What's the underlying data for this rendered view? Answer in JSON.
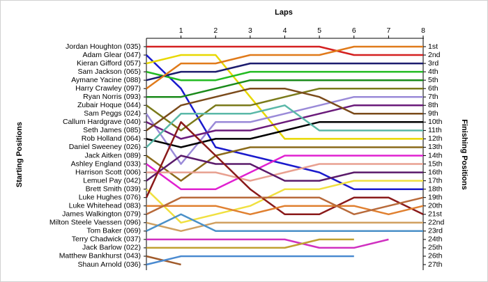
{
  "chart_data": {
    "type": "bump",
    "title": "Laps",
    "y_label": "Starting Positions",
    "y2_label": "Finishing Positions",
    "x": [
      0,
      1,
      2,
      3,
      4,
      5,
      6,
      7,
      8
    ],
    "xlim": [
      0,
      8
    ],
    "xticks": [
      1,
      2,
      3,
      4,
      5,
      6,
      7,
      8
    ],
    "ylim": [
      1,
      27
    ],
    "y_reversed": true,
    "y2ticks": [
      {
        "value": 1,
        "label": "1st"
      },
      {
        "value": 2,
        "label": "2nd"
      },
      {
        "value": 3,
        "label": "3rd"
      },
      {
        "value": 4,
        "label": "4th"
      },
      {
        "value": 5,
        "label": "5th"
      },
      {
        "value": 6,
        "label": "6th"
      },
      {
        "value": 7,
        "label": "7th"
      },
      {
        "value": 8,
        "label": "8th"
      },
      {
        "value": 9,
        "label": "9th"
      },
      {
        "value": 10,
        "label": "10th"
      },
      {
        "value": 11,
        "label": "11th"
      },
      {
        "value": 12,
        "label": "12th"
      },
      {
        "value": 13,
        "label": "13th"
      },
      {
        "value": 14,
        "label": "14th"
      },
      {
        "value": 15,
        "label": "15th"
      },
      {
        "value": 16,
        "label": "16th"
      },
      {
        "value": 17,
        "label": "17th"
      },
      {
        "value": 18,
        "label": "18th"
      },
      {
        "value": 19,
        "label": "19th"
      },
      {
        "value": 20,
        "label": "20th"
      },
      {
        "value": 21,
        "label": "21st"
      },
      {
        "value": 22,
        "label": "22nd"
      },
      {
        "value": 23,
        "label": "23rd"
      },
      {
        "value": 24,
        "label": "24th"
      },
      {
        "value": 25,
        "label": "25th"
      },
      {
        "value": 26,
        "label": "26th"
      },
      {
        "value": 27,
        "label": "27th"
      }
    ],
    "series": [
      {
        "name": "Jordan Houghton (035)",
        "color": "#d42020",
        "values": [
          1,
          1,
          1,
          1,
          1,
          1,
          2,
          2,
          2
        ]
      },
      {
        "name": "Adam Glear (047)",
        "color": "#1a1acc",
        "values": [
          2,
          6,
          13,
          14,
          15,
          16,
          18,
          18,
          18
        ]
      },
      {
        "name": "Kieran Gifford (057)",
        "color": "#e8d800",
        "values": [
          3,
          2,
          2,
          7,
          12,
          12,
          12,
          12,
          12
        ]
      },
      {
        "name": "Sam Jackson (065)",
        "color": "#22bb22",
        "values": [
          4,
          5,
          5,
          4,
          4,
          4,
          4,
          4,
          4
        ]
      },
      {
        "name": "Aymane Yacine (088)",
        "color": "#1c1c6e",
        "values": [
          5,
          4,
          4,
          3,
          3,
          3,
          3,
          3,
          3
        ]
      },
      {
        "name": "Harry Crawley (097)",
        "color": "#e07a1a",
        "values": [
          6,
          3,
          3,
          2,
          2,
          2,
          1,
          1,
          1
        ]
      },
      {
        "name": "Ryan Norris (093)",
        "color": "#1a8a1a",
        "values": [
          7,
          7,
          6,
          5,
          5,
          5,
          5,
          5,
          5
        ]
      },
      {
        "name": "Zubair Hoque (044)",
        "color": "#7a7a1a",
        "values": [
          8,
          11,
          8,
          8,
          7,
          6,
          6,
          6,
          6
        ]
      },
      {
        "name": "Sam Peggs (024)",
        "color": "#9a8ad8",
        "values": [
          9,
          15,
          10,
          10,
          9,
          8,
          7,
          7,
          7
        ]
      },
      {
        "name": "Callum Hardgrave (040)",
        "color": "#6a1a7a",
        "values": [
          10,
          12,
          11,
          11,
          10,
          9,
          8,
          8,
          8
        ]
      },
      {
        "name": "Seth James (085)",
        "color": "#7a4a1a",
        "values": [
          11,
          8,
          7,
          6,
          6,
          7,
          9,
          9,
          9
        ]
      },
      {
        "name": "Rob Holland (064)",
        "color": "#000000",
        "values": [
          12,
          13,
          12,
          12,
          11,
          10,
          10,
          10,
          10
        ]
      },
      {
        "name": "Daniel Sweeney (026)",
        "color": "#5ab8a8",
        "values": [
          13,
          9,
          9,
          9,
          8,
          11,
          11,
          11,
          11
        ]
      },
      {
        "name": "Jack Aitken (089)",
        "color": "#8a6a1a",
        "values": [
          14,
          17,
          14,
          13,
          13,
          13,
          13,
          13,
          13
        ]
      },
      {
        "name": "Ashley England (033)",
        "color": "#e020d0",
        "values": [
          15,
          18,
          18,
          16,
          14,
          14,
          14,
          14,
          14
        ]
      },
      {
        "name": "Harrison Scott (006)",
        "color": "#e8a090",
        "values": [
          16,
          16,
          16,
          17,
          16,
          15,
          15,
          15,
          15
        ]
      },
      {
        "name": "Lemuel Pay (042)",
        "color": "#5a1a6a",
        "values": [
          17,
          14,
          15,
          15,
          17,
          17,
          16,
          16,
          16
        ]
      },
      {
        "name": "Brett Smith (039)",
        "color": "#f0e040",
        "values": [
          18,
          22,
          21,
          20,
          18,
          18,
          17,
          17,
          17
        ]
      },
      {
        "name": "Luke Hughes (076)",
        "color": "#8a1a1a",
        "values": [
          19,
          10,
          14,
          18,
          21,
          21,
          19,
          19,
          21
        ]
      },
      {
        "name": "Luke Whitehead (083)",
        "color": "#e08030",
        "values": [
          20,
          20,
          20,
          21,
          20,
          20,
          20,
          21,
          20
        ]
      },
      {
        "name": "James Walkington (079)",
        "color": "#b86a3a",
        "values": [
          21,
          19,
          19,
          19,
          19,
          19,
          21,
          20,
          19
        ]
      },
      {
        "name": "Milton Steele Vaessen (096)",
        "color": "#d0a060",
        "values": [
          22,
          23,
          22,
          22,
          22,
          22,
          22,
          22,
          22
        ]
      },
      {
        "name": "Tom Baker (069)",
        "color": "#4a90c8",
        "values": [
          23,
          21,
          23,
          23,
          23,
          23,
          23,
          23,
          23
        ]
      },
      {
        "name": "Terry Chadwick (037)",
        "color": "#d030c0",
        "values": [
          24,
          24,
          24,
          24,
          24,
          25,
          25,
          24,
          null
        ]
      },
      {
        "name": "Jack Barlow (022)",
        "color": "#c0a030",
        "values": [
          25,
          25,
          25,
          25,
          25,
          24,
          24,
          null,
          null
        ]
      },
      {
        "name": "Matthew Bankhurst (043)",
        "color": "#a05a2a",
        "values": [
          26,
          27,
          null,
          null,
          null,
          null,
          null,
          null,
          null
        ]
      },
      {
        "name": "Shaun Arnold (036)",
        "color": "#4a8ad0",
        "values": [
          27,
          26,
          26,
          26,
          26,
          26,
          26,
          null,
          null
        ]
      }
    ]
  }
}
